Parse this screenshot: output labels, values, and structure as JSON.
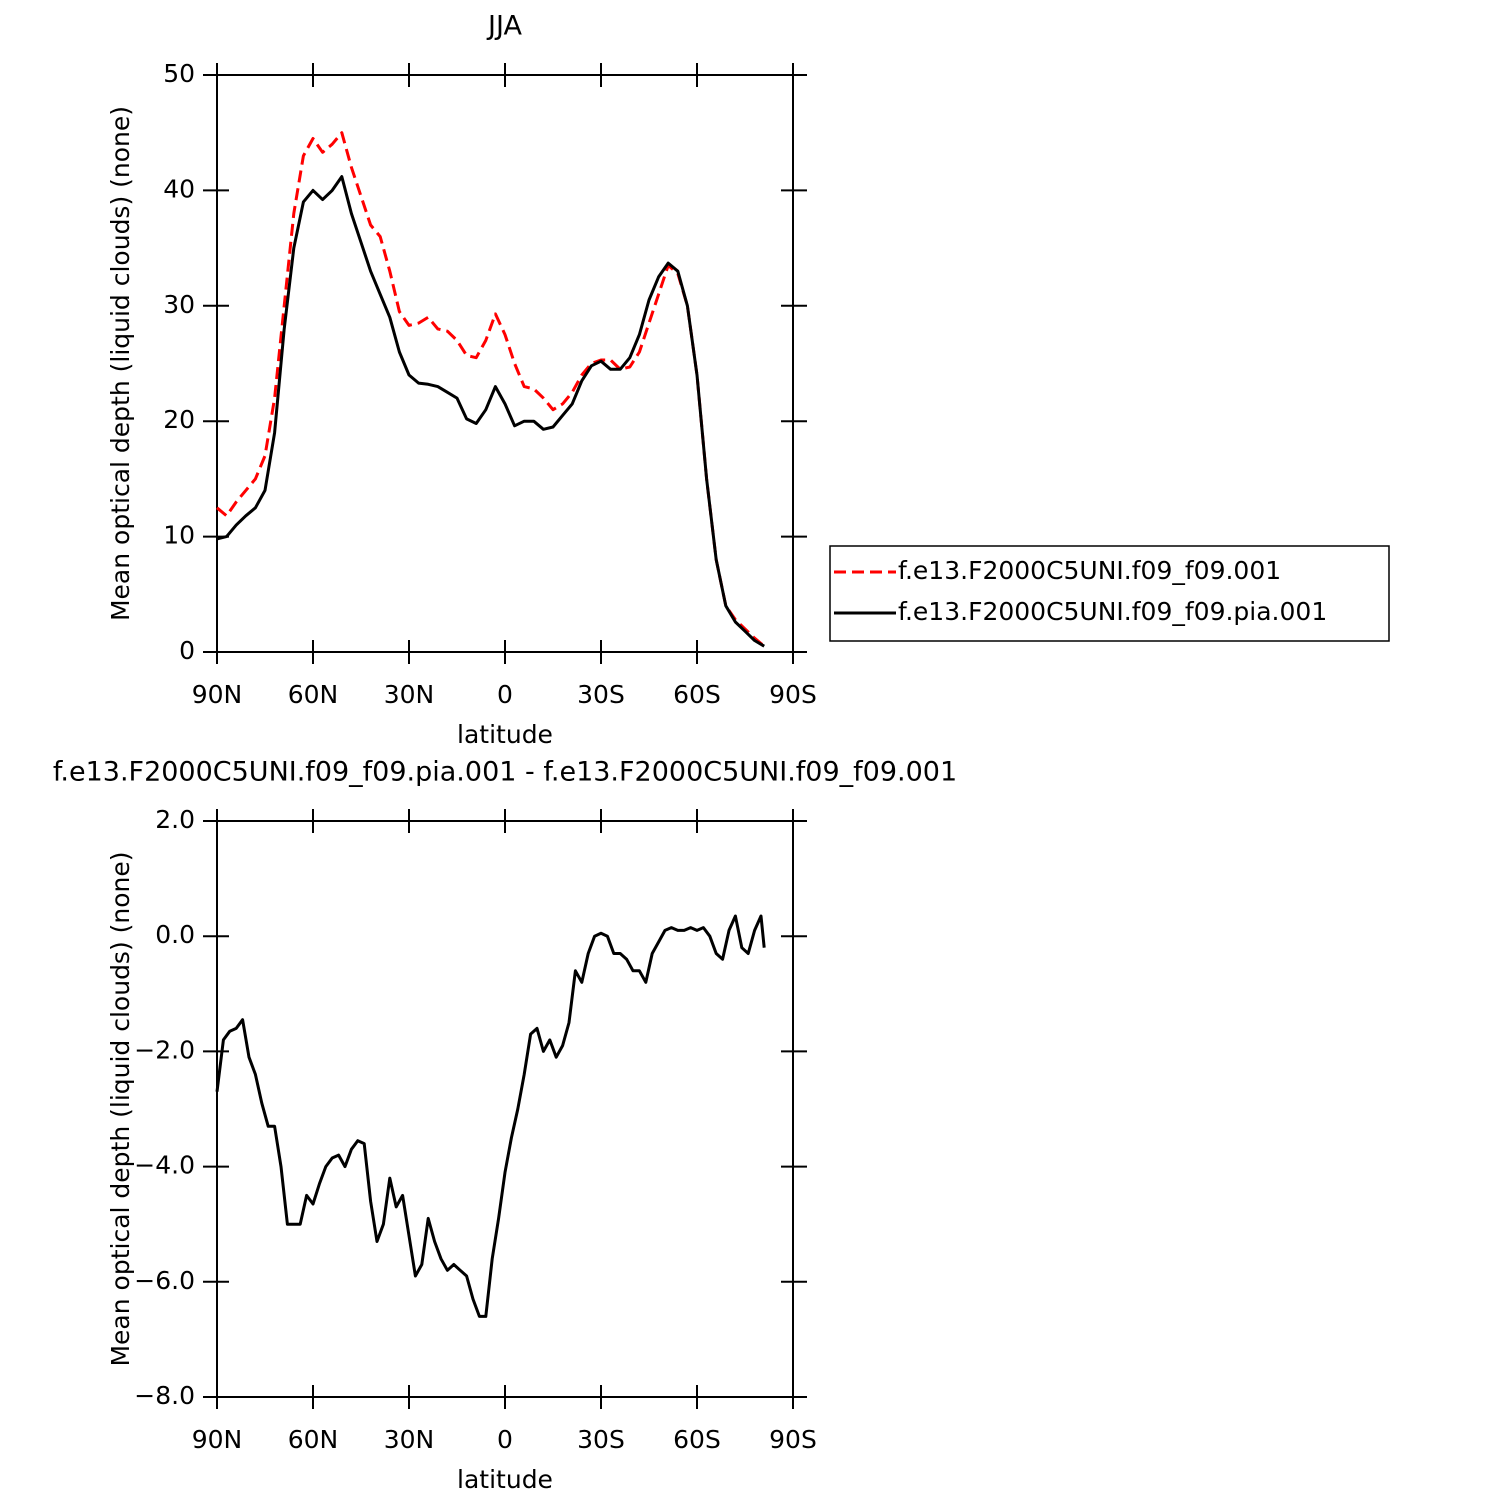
{
  "chart_data": [
    {
      "type": "line",
      "title": "JJA",
      "xlabel": "latitude",
      "ylabel": "Mean optical depth (liquid clouds) (none)",
      "xlim": [
        90,
        -90
      ],
      "xticks": [
        {
          "value": 90,
          "label": "90N"
        },
        {
          "value": 60,
          "label": "60N"
        },
        {
          "value": 30,
          "label": "30N"
        },
        0,
        {
          "value": -30,
          "label": "30S"
        },
        {
          "value": -60,
          "label": "60S"
        },
        {
          "value": -90,
          "label": "90S"
        }
      ],
      "ylim": [
        0,
        50
      ],
      "yticks": [
        0,
        10,
        20,
        30,
        40,
        50
      ],
      "legend": "right",
      "x": [
        90,
        87,
        84,
        81,
        78,
        75,
        72,
        69,
        66,
        63,
        60,
        57,
        54,
        51,
        48,
        45,
        42,
        39,
        36,
        33,
        30,
        27,
        24,
        21,
        18,
        15,
        12,
        9,
        6,
        3,
        0,
        -3,
        -6,
        -9,
        -12,
        -15,
        -18,
        -21,
        -24,
        -27,
        -30,
        -33,
        -36,
        -39,
        -42,
        -45,
        -48,
        -51,
        -54,
        -57,
        -60,
        -63,
        -66,
        -69,
        -72,
        -75,
        -78,
        -81
      ],
      "series": [
        {
          "name": "f.e13.F2000C5UNI.f09_f09.001",
          "color": "#ff0000",
          "style": "dashed",
          "values": [
            12.5,
            11.8,
            13,
            14,
            15,
            17,
            22,
            30,
            38,
            43,
            44.5,
            43.3,
            44,
            45,
            42,
            39.5,
            37,
            36,
            33,
            29.5,
            28.3,
            28.5,
            29,
            28,
            27.8,
            27,
            25.7,
            25.5,
            27,
            29.3,
            27.5,
            25,
            23,
            22.8,
            22,
            21,
            21.5,
            22.5,
            24,
            25,
            25.3,
            25.3,
            24.5,
            24.7,
            26,
            28.5,
            31,
            33.5,
            32.8,
            30,
            24,
            15,
            8,
            4,
            2.8,
            2,
            1.2,
            0.5
          ]
        },
        {
          "name": "f.e13.F2000C5UNI.f09_f09.pia.001",
          "color": "#000000",
          "style": "solid",
          "values": [
            9.8,
            10,
            11,
            11.8,
            12.5,
            14,
            19,
            28,
            35,
            39,
            40,
            39.2,
            40,
            41.2,
            38,
            35.5,
            33,
            31,
            29,
            26,
            24,
            23.3,
            23.2,
            23,
            22.5,
            22,
            20.2,
            19.8,
            21,
            23,
            21.5,
            19.6,
            20,
            20,
            19.3,
            19.5,
            20.5,
            21.5,
            23.5,
            24.8,
            25.2,
            24.5,
            24.5,
            25.5,
            27.5,
            30.5,
            32.5,
            33.7,
            33,
            30,
            24,
            15,
            8,
            4,
            2.6,
            1.8,
            1,
            0.5
          ]
        }
      ]
    },
    {
      "type": "line",
      "title": "f.e13.F2000C5UNI.f09_f09.pia.001 - f.e13.F2000C5UNI.f09_f09.001",
      "xlabel": "latitude",
      "ylabel": "Mean optical depth (liquid clouds) (none)",
      "xlim": [
        90,
        -90
      ],
      "xticks": [
        {
          "value": 90,
          "label": "90N"
        },
        {
          "value": 60,
          "label": "60N"
        },
        {
          "value": 30,
          "label": "30N"
        },
        0,
        {
          "value": -30,
          "label": "30S"
        },
        {
          "value": -60,
          "label": "60S"
        },
        {
          "value": -90,
          "label": "90S"
        }
      ],
      "ylim": [
        -8,
        2
      ],
      "yticks": [
        {
          "value": 2,
          "label": "2.0"
        },
        {
          "value": 0,
          "label": "0.0"
        },
        {
          "value": -2,
          "label": "−2.0"
        },
        {
          "value": -4,
          "label": "−4.0"
        },
        {
          "value": -6,
          "label": "−6.0"
        },
        {
          "value": -8,
          "label": "−8.0"
        }
      ],
      "x": [
        90,
        88,
        86,
        84,
        82,
        80,
        78,
        76,
        74,
        72,
        70,
        68,
        66,
        64,
        62,
        60,
        58,
        56,
        54,
        52,
        50,
        48,
        46,
        44,
        42,
        40,
        38,
        36,
        34,
        32,
        30,
        28,
        26,
        24,
        22,
        20,
        18,
        16,
        14,
        12,
        10,
        8,
        6,
        4,
        2,
        0,
        -2,
        -4,
        -6,
        -8,
        -10,
        -12,
        -14,
        -16,
        -18,
        -20,
        -22,
        -24,
        -26,
        -28,
        -30,
        -32,
        -34,
        -36,
        -38,
        -40,
        -42,
        -44,
        -46,
        -48,
        -50,
        -52,
        -54,
        -56,
        -58,
        -60,
        -62,
        -64,
        -66,
        -68,
        -70,
        -72,
        -74,
        -76,
        -78,
        -80,
        -81
      ],
      "series": [
        {
          "color": "#000000",
          "style": "solid",
          "values": [
            -2.7,
            -1.8,
            -1.65,
            -1.6,
            -1.45,
            -2.1,
            -2.4,
            -2.9,
            -3.3,
            -3.3,
            -4.0,
            -5.0,
            -5.0,
            -5.0,
            -4.5,
            -4.65,
            -4.3,
            -4.0,
            -3.85,
            -3.8,
            -4.0,
            -3.7,
            -3.55,
            -3.6,
            -4.6,
            -5.3,
            -5.0,
            -4.2,
            -4.7,
            -4.5,
            -5.2,
            -5.9,
            -5.7,
            -4.9,
            -5.3,
            -5.6,
            -5.8,
            -5.7,
            -5.8,
            -5.9,
            -6.3,
            -6.6,
            -6.6,
            -5.6,
            -4.9,
            -4.1,
            -3.5,
            -3.0,
            -2.4,
            -1.7,
            -1.6,
            -2.0,
            -1.8,
            -2.1,
            -1.9,
            -1.5,
            -0.6,
            -0.8,
            -0.3,
            0.0,
            0.05,
            0.0,
            -0.3,
            -0.3,
            -0.4,
            -0.6,
            -0.6,
            -0.8,
            -0.3,
            -0.1,
            0.1,
            0.15,
            0.1,
            0.1,
            0.15,
            0.1,
            0.15,
            0.0,
            -0.3,
            -0.4,
            0.1,
            0.35,
            -0.2,
            -0.3,
            0.1,
            0.35,
            -0.2
          ]
        }
      ]
    }
  ]
}
